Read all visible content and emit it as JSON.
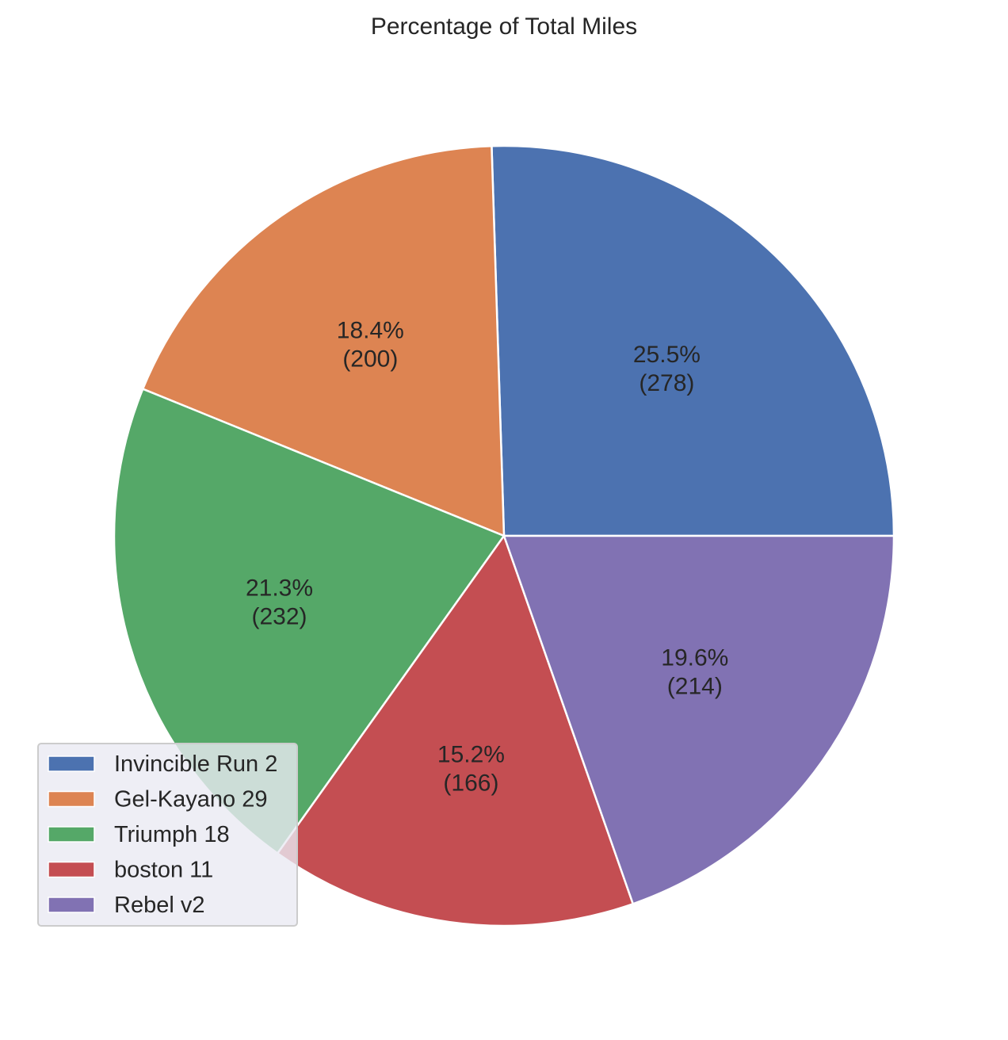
{
  "chart_data": {
    "type": "pie",
    "title": "Percentage of Total Miles",
    "categories": [
      "Invincible Run 2",
      "Gel-Kayano 29",
      "Triumph 18",
      "boston 11",
      "Rebel v2"
    ],
    "values": [
      278,
      200,
      232,
      166,
      214
    ],
    "percent_labels": [
      "25.5%",
      "18.4%",
      "21.3%",
      "15.2%",
      "19.6%"
    ],
    "value_labels": [
      "(278)",
      "(200)",
      "(232)",
      "(166)",
      "(214)"
    ],
    "colors": [
      "#4c72b0",
      "#dd8452",
      "#55a868",
      "#c44e52",
      "#8172b3"
    ],
    "start_angle_deg": 0,
    "direction": "counterclockwise",
    "legend_position": "lower-left",
    "wedge_edge_color": "#ffffff",
    "legend_background": "#eaeaf2"
  }
}
